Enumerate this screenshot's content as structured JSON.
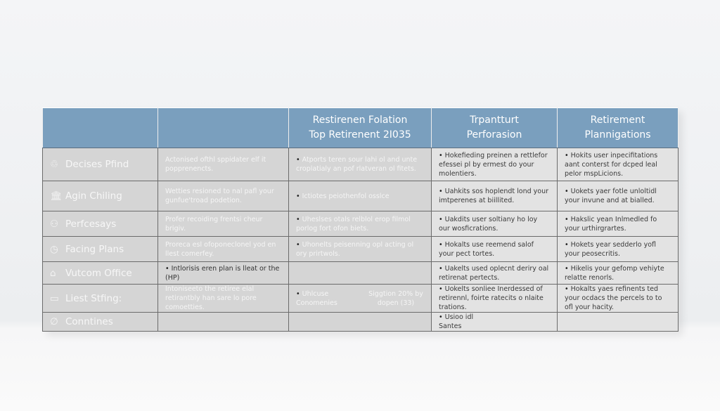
{
  "headers": [
    "",
    "",
    "Restirenen Folation\nTop Retirenent 2I035",
    "Trpantturt\nPerforasion",
    "Retirement\nPlannigations"
  ],
  "rows": [
    {
      "icon": "people-icon",
      "glyph": "♲",
      "label": "Decises Pfind",
      "c2": "Actonised ofthl sppidater elf it popprenencts.",
      "c3": "Atports teren sour lahi ol and unte croplatialy an pof rlatveran ol fitets.",
      "c4": "Hokefieding preinen a rettlefor efessei pl by ermest do your molentiers.",
      "c5": "Hokits user inpecifitations aant conterst for dcped leal pelor mspLicions."
    },
    {
      "icon": "bank-icon",
      "glyph": "🏛",
      "label": "Agin Chiling",
      "c2": "Wetties resioned to nal pafl your gunfue'troad podetion.",
      "c3": "Ictiotes peiothenfol osslce",
      "c4": "Uahkits sos hoplendt lond your imtperenes at biillited.",
      "c5": "Uokets yaer fotle unloltidl your invune and at bialled."
    },
    {
      "icon": "person-icon",
      "glyph": "⚇",
      "label": "Perfcesays",
      "c2": "Profer recoiding frentsi cheur brigiv.",
      "c3": "Uheslses otals relblol erop filmol porlog fort ofon biets.",
      "c4": "Uakdits user soltiany ho loy our wosficrations.",
      "c5": "Hakslic yean Inlmedled fo your urthirgrartes."
    },
    {
      "icon": "clock-icon",
      "glyph": "◷",
      "label": "Facing Plans",
      "c2": "Proreca esl ofoponeclonel yod en llest comerfey.",
      "c3": "Uhonelts peisenning opl acting ol ory prirtwols.",
      "c4": "Hokalts use reemend salof your pect tortes.",
      "c5": "Hokets year sedderlo yofl your peosecritis."
    },
    {
      "icon": "home-icon",
      "glyph": "⌂",
      "label": "Vutcom Office",
      "c2": "Intlorisis eren plan is lleat or the (HP)",
      "c3": "",
      "c4": "Uakelts used oplecnt deriry oal retirenat pertects.",
      "c5": "Hikelis your gefomp vehiyte relatte renorls."
    },
    {
      "icon": "monitor-icon",
      "glyph": "▭",
      "label": "Liest Stfing:",
      "c2": "Intoniseeto the retiree elal retirantbly han sare lo pore comoetties.",
      "c3": "Uhlcuse Conomenies",
      "c3b": "Siggtion 20% by dopen (33)",
      "c4": "Uokelts sonliee Inerdessed of retirennl, foirte ratecits o nlaite trations.",
      "c5": "Hokalts yaes refinents ted your ocdacs the percels to to ofl your hacity."
    },
    {
      "icon": "link-icon",
      "glyph": "∅",
      "label": "Conntines",
      "c2": "",
      "c3": "",
      "c4": "Usioo idl\nSantes",
      "c5": ""
    }
  ]
}
